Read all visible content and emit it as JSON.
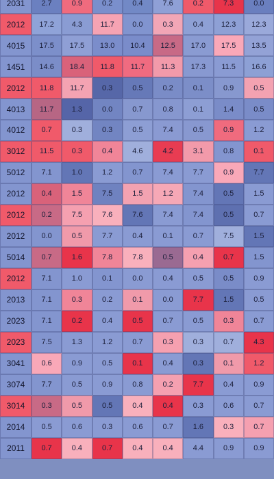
{
  "chart_data": {
    "type": "heatmap",
    "title": "",
    "xlabel": "",
    "ylabel": "",
    "legend": "none",
    "grid": true,
    "row_labels": [
      "2031",
      "2012",
      "4015",
      "1451",
      "2012",
      "4013",
      "4012",
      "3012",
      "5012",
      "2012",
      "2012",
      "2012",
      "5014",
      "2012",
      "2013",
      "2023",
      "2023",
      "3041",
      "3074",
      "3014",
      "2014",
      "2011"
    ],
    "values": [
      [
        "2.7",
        "0.9",
        "0.2",
        "0.4",
        "7.6",
        "0.2",
        "7.3",
        "0.0"
      ],
      [
        "17.2",
        "4.3",
        "11.7",
        "0.0",
        "0.3",
        "0.4",
        "12.3",
        "12.3"
      ],
      [
        "17.5",
        "17.5",
        "13.0",
        "10.4",
        "12.5",
        "17.0",
        "17.5",
        "13.5"
      ],
      [
        "14.6",
        "18.4",
        "11.8",
        "11.7",
        "11.3",
        "17.3",
        "11.5",
        "16.6"
      ],
      [
        "11.8",
        "11.7",
        "0.3",
        "0.5",
        "0.2",
        "0.1",
        "0.9",
        "0.5"
      ],
      [
        "11.7",
        "1.3",
        "0.0",
        "0.7",
        "0.8",
        "0.1",
        "1.4",
        "0.5"
      ],
      [
        "0.7",
        "0.3",
        "0.3",
        "0.5",
        "7.4",
        "0.5",
        "0.9",
        "1.2"
      ],
      [
        "11.5",
        "0.3",
        "0.4",
        "4.6",
        "4.2",
        "3.1",
        "0.8",
        "0.1"
      ],
      [
        "7.1",
        "1.0",
        "1.2",
        "0.7",
        "7.4",
        "7.7",
        "0.9",
        "7.7"
      ],
      [
        "0.4",
        "1.5",
        "7.5",
        "1.5",
        "1.2",
        "7.4",
        "0.5",
        "1.5"
      ],
      [
        "0.2",
        "7.5",
        "7.6",
        "7.6",
        "7.4",
        "7.4",
        "0.5",
        "0.7"
      ],
      [
        "0.0",
        "0.5",
        "7.7",
        "0.4",
        "0.1",
        "0.7",
        "7.5",
        "1.5"
      ],
      [
        "0.7",
        "1.6",
        "7.8",
        "7.8",
        "0.5",
        "0.4",
        "0.7",
        "1.5"
      ],
      [
        "7.1",
        "1.0",
        "0.1",
        "0.0",
        "0.4",
        "0.5",
        "0.5",
        "0.9"
      ],
      [
        "7.1",
        "0.3",
        "0.2",
        "0.1",
        "0.0",
        "7.7",
        "1.5",
        "0.5"
      ],
      [
        "7.1",
        "0.2",
        "0.4",
        "0.5",
        "0.7",
        "0.5",
        "0.3",
        "0.7"
      ],
      [
        "7.5",
        "1.3",
        "1.2",
        "0.7",
        "0.3",
        "0.3",
        "0.7",
        "4.3"
      ],
      [
        "0.6",
        "0.9",
        "0.5",
        "0.1",
        "0.4",
        "0.3",
        "0.1",
        "1.2"
      ],
      [
        "7.7",
        "0.5",
        "0.9",
        "0.8",
        "0.2",
        "7.7",
        "0.4",
        "0.9"
      ],
      [
        "0.3",
        "0.5",
        "0.5",
        "0.4",
        "0.4",
        "0.3",
        "0.6",
        "0.7"
      ],
      [
        "0.5",
        "0.6",
        "0.3",
        "0.6",
        "0.7",
        "1.6",
        "0.3",
        "0.7"
      ],
      [
        "0.7",
        "0.4",
        "0.7",
        "0.4",
        "0.4",
        "4.4",
        "0.9",
        "0.9"
      ]
    ],
    "colors": [
      [
        "#6b80c0",
        "#f06b7e",
        "#7a8fcc",
        "#7289c6",
        "#8fa0d6",
        "#f05a6a",
        "#e8344a",
        "#6a7fbf"
      ],
      [
        "#8fa3d8",
        "#8a9cd3",
        "#f6a3b3",
        "#8194cf",
        "#f2a6b6",
        "#8ea0d5",
        "#8ea0d5",
        "#9aa9da"
      ],
      [
        "#7c8fca",
        "#8f9fd5",
        "#7b8dcb",
        "#7a8cca",
        "#c86a86",
        "#8a9bd2",
        "#f9a8b8",
        "#93a2d6"
      ],
      [
        "#7b8dc8",
        "#d9627a",
        "#f05a6a",
        "#f06b80",
        "#f29aaa",
        "#8899d1",
        "#8a9bd3",
        "#8da0d5"
      ],
      [
        "#f05a6a",
        "#f4a3b2",
        "#5667a8",
        "#6679b8",
        "#7a8cc7",
        "#7c8ec8",
        "#8798cf",
        "#f3a2b1"
      ],
      [
        "#b76684",
        "#5565a8",
        "#7285c2",
        "#8798cf",
        "#8697cf",
        "#8d9ed4",
        "#7a8cc8",
        "#7a8cc8"
      ],
      [
        "#f05a6a",
        "#a0afdc",
        "#7285c2",
        "#8d9ed4",
        "#8a9ad2",
        "#8898d0",
        "#f06b7e",
        "#8a9bd3"
      ],
      [
        "#f05a6a",
        "#f05a6a",
        "#f08598",
        "#a0afdc",
        "#e83c52",
        "#f29aaa",
        "#8395cf",
        "#f05a6a"
      ],
      [
        "#8395cf",
        "#6376b6",
        "#8a9bd3",
        "#8395cf",
        "#8a9bd3",
        "#8a9bd3",
        "#f9a8b8",
        "#6376b6"
      ],
      [
        "#d9627a",
        "#f08598",
        "#6f82c0",
        "#f3a2b1",
        "#f6a8b6",
        "#8395cf",
        "#6376b6",
        "#8a9bd3"
      ],
      [
        "#c86a86",
        "#f5a0b0",
        "#f9b0bc",
        "#6376b6",
        "#8a9bd3",
        "#8395cf",
        "#5e70b0",
        "#8a9bd3"
      ],
      [
        "#8395cf",
        "#f09aaa",
        "#8a9bd3",
        "#8a9bd3",
        "#8a9bd3",
        "#8a9bd3",
        "#a0afdc",
        "#6376b6"
      ],
      [
        "#c86a86",
        "#e8344a",
        "#f08598",
        "#f9b0bc",
        "#9a6a92",
        "#f5a0b0",
        "#e8344a",
        "#8395cf"
      ],
      [
        "#8395cf",
        "#8a9bd3",
        "#8395cf",
        "#8a9bd3",
        "#8a9bd3",
        "#8a9bd3",
        "#7a8cc8",
        "#8a9bd3"
      ],
      [
        "#8395cf",
        "#f08598",
        "#8a9bd3",
        "#f09aaa",
        "#8a9bd3",
        "#e8344a",
        "#6376b6",
        "#8a9bd3"
      ],
      [
        "#8395cf",
        "#e8344a",
        "#8a9bd3",
        "#e8344a",
        "#8a9bd3",
        "#8a9bd3",
        "#f08598",
        "#8a9bd3"
      ],
      [
        "#8395cf",
        "#8a9bd3",
        "#8a9bd3",
        "#8a9bd3",
        "#f5a0b0",
        "#a0afdc",
        "#a0afdc",
        "#e8344a"
      ],
      [
        "#f9a8b8",
        "#8a9bd3",
        "#8a9bd3",
        "#e8344a",
        "#8a9bd3",
        "#6376b6",
        "#f09aaa",
        "#f05a6a"
      ],
      [
        "#8395cf",
        "#8a9bd3",
        "#8a9bd3",
        "#8a9bd3",
        "#f5a0b0",
        "#e8344a",
        "#8a9bd3",
        "#8a9bd3"
      ],
      [
        "#c86a86",
        "#f09aaa",
        "#6376b6",
        "#f9b0bc",
        "#e8344a",
        "#8a9bd3",
        "#8a9bd3",
        "#8a9bd3"
      ],
      [
        "#8a9bd3",
        "#8a9bd3",
        "#8a9bd3",
        "#8a9bd3",
        "#8a9bd3",
        "#6376b6",
        "#f9b0bc",
        "#f5a0b0"
      ],
      [
        "#e8344a",
        "#f9b0bc",
        "#e8344a",
        "#f9b0bc",
        "#f9b0bc",
        "#8a9bd3",
        "#8a9bd3",
        "#8a9bd3"
      ]
    ]
  }
}
